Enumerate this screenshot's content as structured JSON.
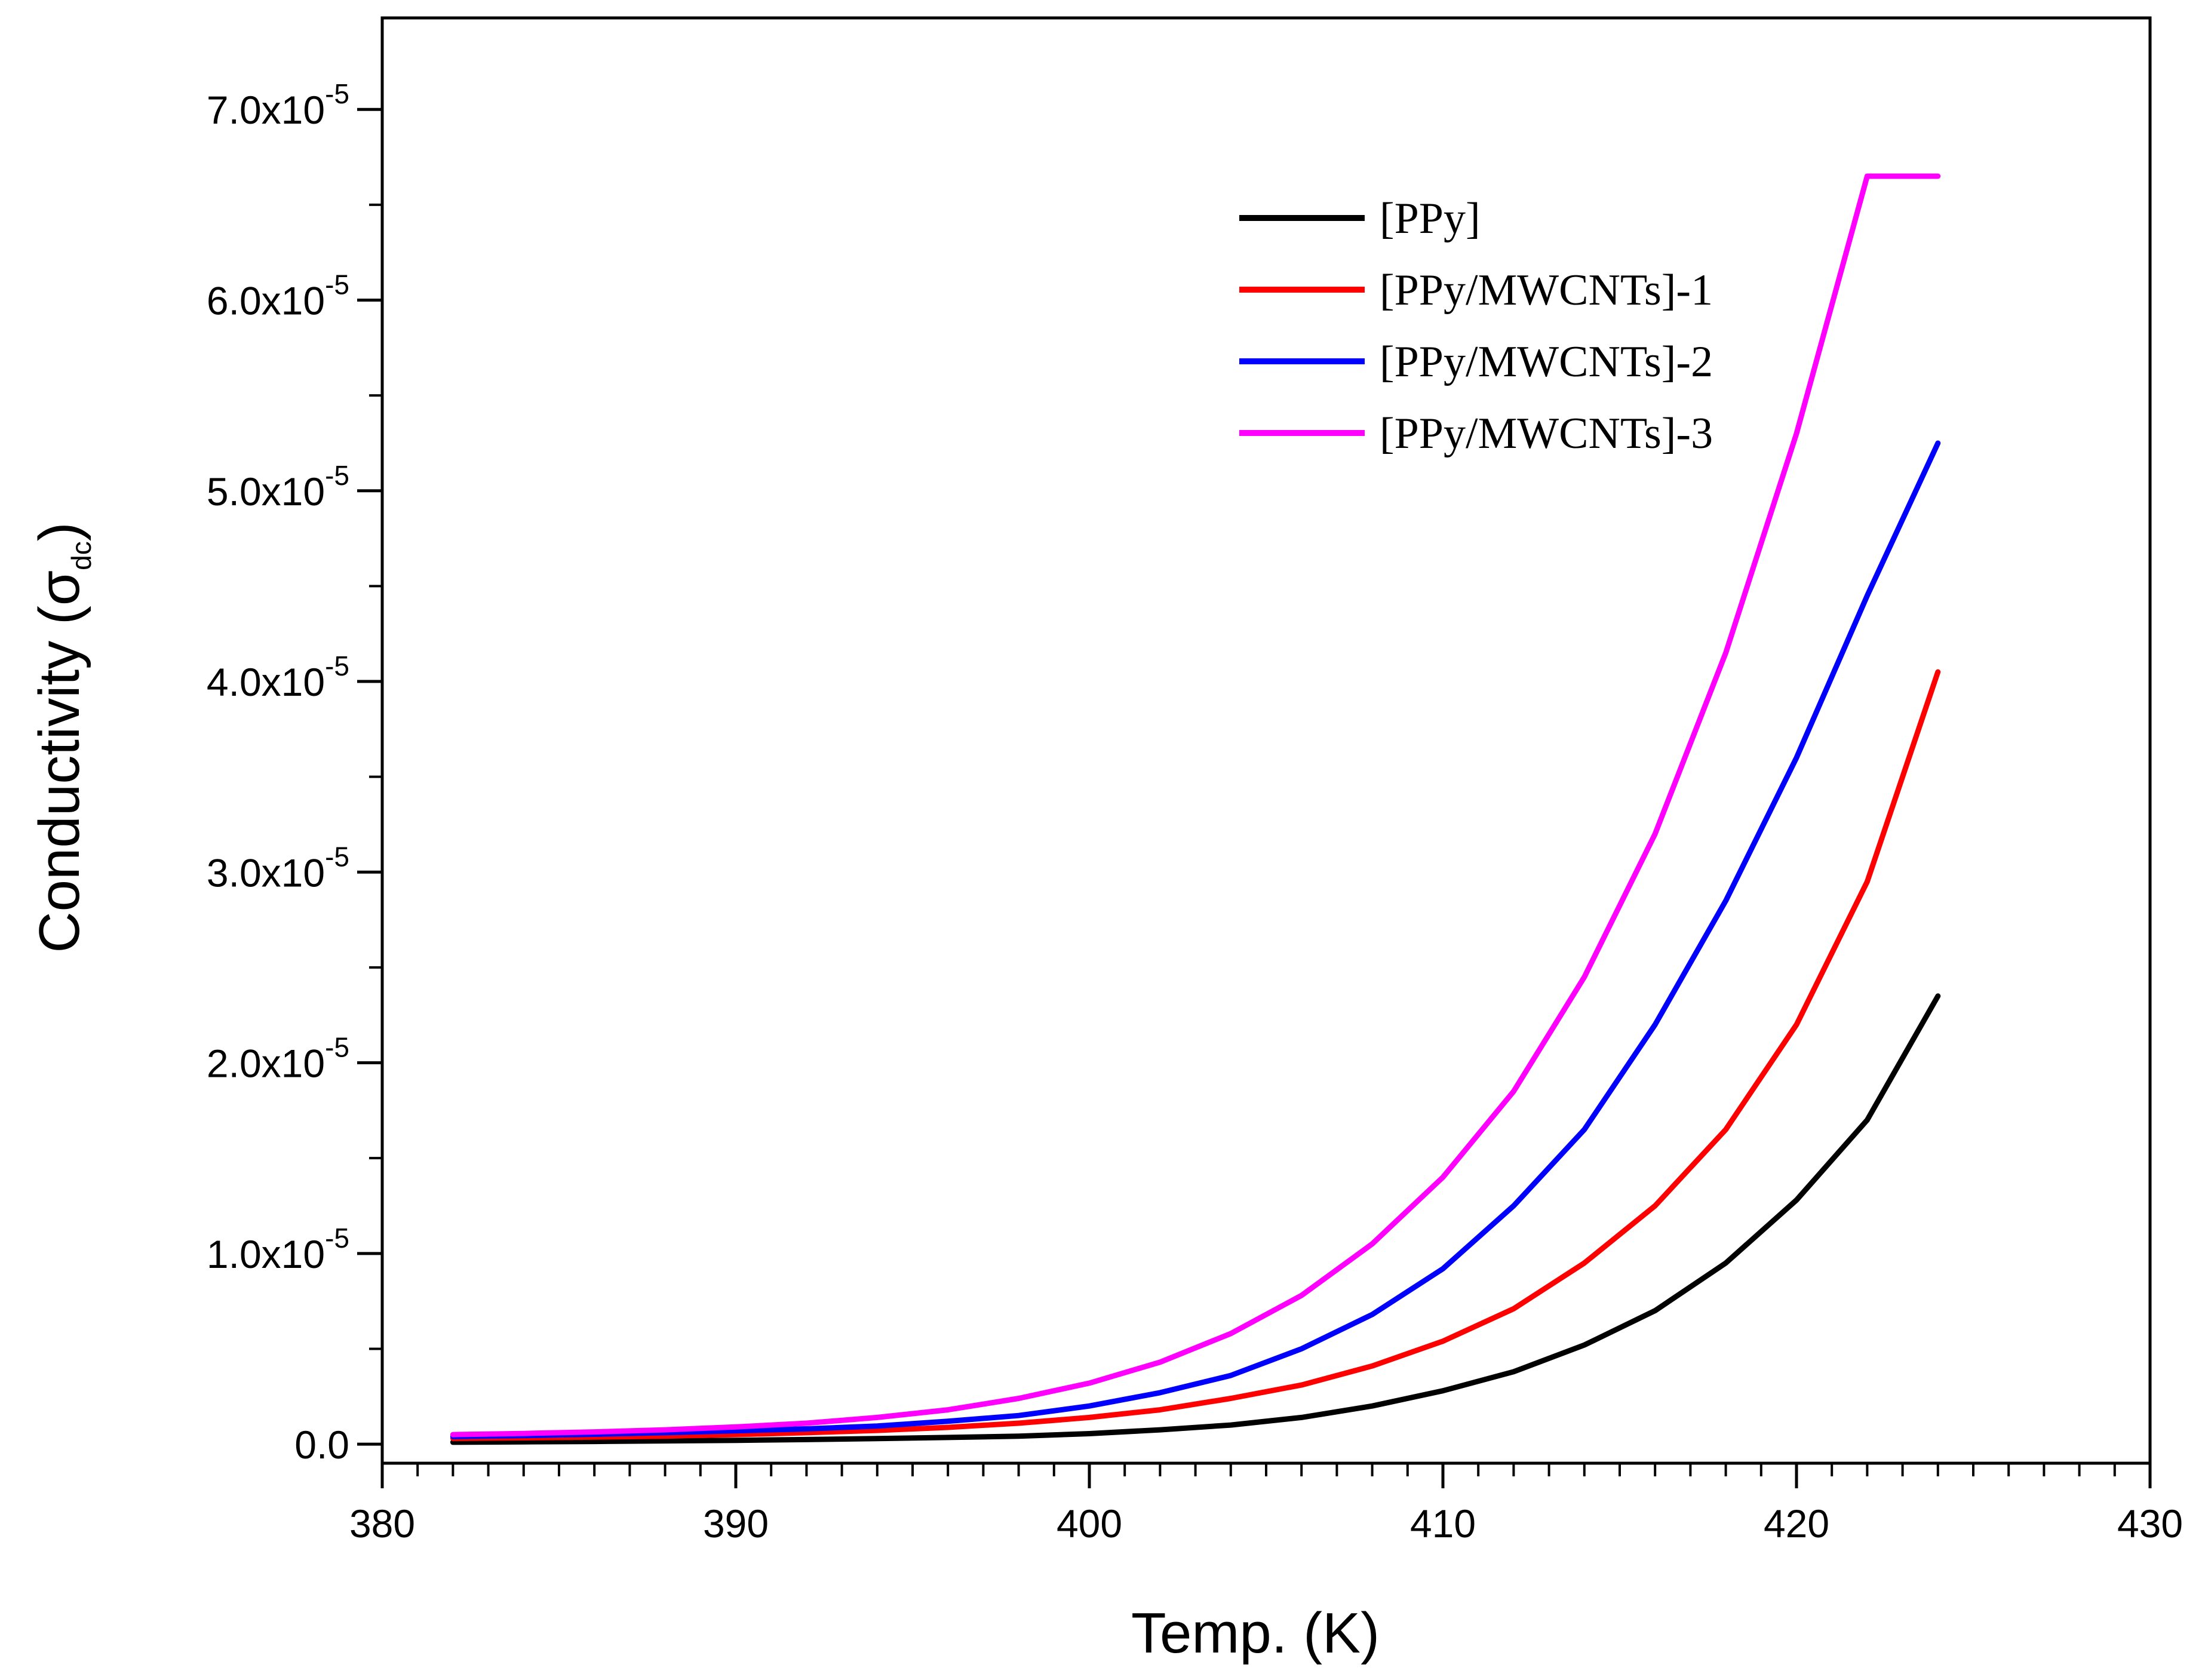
{
  "chart_data": {
    "type": "line",
    "title": "",
    "xlabel": "Temp. (K)",
    "ylabel": {
      "prefix": "Conductivity (",
      "symbol": "σ",
      "subscript": "dc",
      "suffix": ")"
    },
    "xlim": [
      380,
      430
    ],
    "ylim": [
      -1e-06,
      7.48e-05
    ],
    "x_ticks": [
      380,
      390,
      400,
      410,
      420,
      430
    ],
    "x_tick_labels": [
      "380",
      "390",
      "400",
      "410",
      "420",
      "430"
    ],
    "y_ticks": [
      0,
      1e-05,
      2e-05,
      3e-05,
      4e-05,
      5e-05,
      6e-05,
      7e-05
    ],
    "y_tick_labels": [
      {
        "mantissa": "0.0",
        "exp": ""
      },
      {
        "mantissa": "1.0x10",
        "exp": "-5"
      },
      {
        "mantissa": "2.0x10",
        "exp": "-5"
      },
      {
        "mantissa": "3.0x10",
        "exp": "-5"
      },
      {
        "mantissa": "4.0x10",
        "exp": "-5"
      },
      {
        "mantissa": "5.0x10",
        "exp": "-5"
      },
      {
        "mantissa": "6.0x10",
        "exp": "-5"
      },
      {
        "mantissa": "7.0x10",
        "exp": "-5"
      }
    ],
    "grid": false,
    "legend_position": "top-right",
    "x": [
      382,
      384,
      386,
      388,
      390,
      392,
      394,
      396,
      398,
      400,
      402,
      404,
      406,
      408,
      410,
      412,
      414,
      416,
      418,
      420,
      422,
      424
    ],
    "series": [
      {
        "name": "[PPy]",
        "color": "#000000",
        "values": [
          1e-07,
          1.2e-07,
          1.4e-07,
          1.7e-07,
          2e-07,
          2.4e-07,
          2.9e-07,
          3.5e-07,
          4.2e-07,
          5.5e-07,
          7.5e-07,
          1e-06,
          1.4e-06,
          2e-06,
          2.8e-06,
          3.8e-06,
          5.2e-06,
          7e-06,
          9.5e-06,
          1.28e-05,
          1.7e-05,
          2.35e-05
        ]
      },
      {
        "name": "[PPy/MWCNTs]-1",
        "color": "#ff0000",
        "values": [
          3e-07,
          3.3e-07,
          3.7e-07,
          4.2e-07,
          5e-07,
          6e-07,
          7.2e-07,
          8.8e-07,
          1.1e-06,
          1.4e-06,
          1.8e-06,
          2.4e-06,
          3.1e-06,
          4.1e-06,
          5.4e-06,
          7.1e-06,
          9.5e-06,
          1.25e-05,
          1.65e-05,
          2.2e-05,
          2.95e-05,
          4.05e-05
        ]
      },
      {
        "name": "[PPy/MWCNTs]-2",
        "color": "#0000ff",
        "values": [
          4e-07,
          4.5e-07,
          5.2e-07,
          6e-07,
          7e-07,
          8e-07,
          9.5e-07,
          1.2e-06,
          1.5e-06,
          2e-06,
          2.7e-06,
          3.6e-06,
          5e-06,
          6.8e-06,
          9.2e-06,
          1.25e-05,
          1.65e-05,
          2.2e-05,
          2.85e-05,
          3.6e-05,
          4.45e-05,
          5.25e-05
        ]
      },
      {
        "name": "[PPy/MWCNTs]-3",
        "color": "#ff00ff",
        "values": [
          5e-07,
          5.6e-07,
          6.4e-07,
          7.5e-07,
          9e-07,
          1.1e-06,
          1.4e-06,
          1.8e-06,
          2.4e-06,
          3.2e-06,
          4.3e-06,
          5.8e-06,
          7.8e-06,
          1.05e-05,
          1.4e-05,
          1.85e-05,
          2.45e-05,
          3.2e-05,
          4.15e-05,
          5.3e-05,
          6.65e-05,
          6.65e-05
        ]
      }
    ]
  }
}
